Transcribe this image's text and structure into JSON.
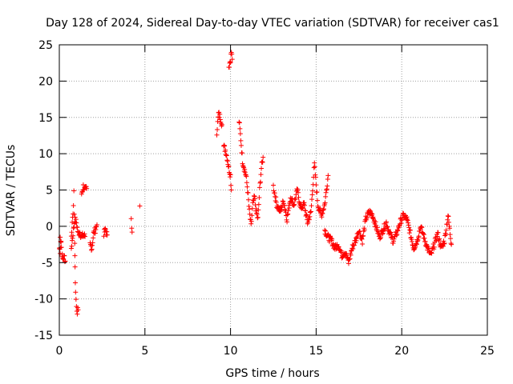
{
  "chart_data": {
    "type": "scatter",
    "title": "Day 128 of 2024, Sidereal Day-to-day VTEC variation (SDTVAR) for receiver cas1",
    "xlabel": "GPS time / hours",
    "ylabel": "SDTVAR / TECUs",
    "xlim": [
      0,
      25
    ],
    "ylim": [
      -15,
      25
    ],
    "xticks": [
      0,
      5,
      10,
      15,
      20,
      25
    ],
    "yticks": [
      -15,
      -10,
      -5,
      0,
      5,
      10,
      15,
      20,
      25
    ],
    "grid": true,
    "marker": "+",
    "series": [
      {
        "name": "SDTVAR",
        "color": "#ff0000",
        "segments": [
          [
            [
              0.0,
              -3.0
            ],
            [
              0.05,
              -3.4
            ],
            [
              0.1,
              -2.0
            ],
            [
              0.15,
              -3.8
            ],
            [
              0.2,
              -4.5
            ],
            [
              0.3,
              -4.2
            ],
            [
              0.35,
              -4.8
            ]
          ],
          [
            [
              0.05,
              -1.5
            ],
            [
              0.1,
              -2.2
            ]
          ],
          [
            [
              0.7,
              -1.5
            ],
            [
              0.75,
              0.5
            ],
            [
              0.8,
              2.0
            ],
            [
              0.85,
              4.5
            ],
            [
              0.9,
              -2.0
            ],
            [
              0.92,
              -6.0
            ],
            [
              0.95,
              -9.0
            ],
            [
              1.0,
              -11.2
            ],
            [
              1.05,
              -11.8
            ],
            [
              1.1,
              -11.5
            ]
          ],
          [
            [
              0.7,
              -3.0
            ],
            [
              0.8,
              -1.0
            ],
            [
              0.9,
              1.0
            ],
            [
              1.0,
              0.5
            ],
            [
              1.1,
              -1.0
            ],
            [
              1.2,
              -0.8
            ],
            [
              1.3,
              -1.5
            ],
            [
              1.4,
              -1.2
            ],
            [
              1.5,
              -1.4
            ]
          ],
          [
            [
              1.3,
              4.5
            ],
            [
              1.4,
              5.5
            ],
            [
              1.5,
              5.0
            ],
            [
              1.6,
              5.2
            ]
          ],
          [
            [
              1.8,
              -2.5
            ],
            [
              1.9,
              -3.0
            ],
            [
              2.0,
              -1.0
            ],
            [
              2.1,
              -0.5
            ],
            [
              2.2,
              0.2
            ]
          ],
          [
            [
              2.6,
              -1.0
            ],
            [
              2.7,
              -0.5
            ],
            [
              2.8,
              -1.2
            ]
          ],
          [
            [
              4.2,
              0.7
            ],
            [
              4.25,
              -0.8
            ]
          ],
          [
            [
              4.7,
              2.8
            ]
          ],
          [
            [
              9.2,
              13.0
            ],
            [
              9.3,
              15.5
            ],
            [
              9.4,
              15.0
            ],
            [
              9.5,
              14.0
            ]
          ],
          [
            [
              9.6,
              11.0
            ],
            [
              9.7,
              10.5
            ],
            [
              9.8,
              9.5
            ],
            [
              9.9,
              8.0
            ],
            [
              10.0,
              7.0
            ],
            [
              10.05,
              5.0
            ]
          ],
          [
            [
              9.9,
              22.0
            ],
            [
              10.0,
              23.0
            ],
            [
              10.05,
              24.0
            ],
            [
              10.1,
              23.0
            ]
          ],
          [
            [
              10.5,
              14.5
            ],
            [
              10.6,
              12.0
            ],
            [
              10.7,
              9.0
            ],
            [
              10.8,
              8.0
            ],
            [
              10.9,
              7.0
            ],
            [
              11.0,
              5.0
            ],
            [
              11.1,
              2.0
            ],
            [
              11.2,
              0.0
            ],
            [
              11.3,
              3.0
            ],
            [
              11.4,
              4.0
            ],
            [
              11.5,
              2.0
            ],
            [
              11.6,
              1.0
            ],
            [
              11.7,
              5.0
            ],
            [
              11.8,
              8.0
            ],
            [
              11.9,
              9.5
            ]
          ],
          [
            [
              12.5,
              5.5
            ],
            [
              12.7,
              3.0
            ],
            [
              12.9,
              2.0
            ],
            [
              13.1,
              3.5
            ],
            [
              13.3,
              1.0
            ],
            [
              13.5,
              4.0
            ],
            [
              13.7,
              3.0
            ],
            [
              13.9,
              5.0
            ],
            [
              14.1,
              2.5
            ],
            [
              14.3,
              3.0
            ],
            [
              14.5,
              0.5
            ],
            [
              14.7,
              2.0
            ],
            [
              14.9,
              8.5
            ],
            [
              15.1,
              3.0
            ],
            [
              15.3,
              1.5
            ],
            [
              15.5,
              3.0
            ],
            [
              15.7,
              7.0
            ]
          ],
          [
            [
              15.5,
              -0.5
            ],
            [
              15.7,
              -1.5
            ],
            [
              15.9,
              -2.0
            ],
            [
              16.1,
              -3.0
            ],
            [
              16.3,
              -2.5
            ],
            [
              16.5,
              -4.0
            ],
            [
              16.7,
              -3.5
            ],
            [
              16.9,
              -5.0
            ],
            [
              17.1,
              -3.0
            ],
            [
              17.3,
              -2.0
            ],
            [
              17.5,
              -0.5
            ],
            [
              17.7,
              -2.0
            ],
            [
              17.9,
              1.0
            ],
            [
              18.1,
              2.0
            ],
            [
              18.3,
              1.5
            ],
            [
              18.5,
              0.0
            ],
            [
              18.7,
              -1.5
            ],
            [
              18.9,
              -0.5
            ],
            [
              19.1,
              0.5
            ],
            [
              19.3,
              -1.0
            ],
            [
              19.5,
              -2.0
            ],
            [
              19.7,
              -1.0
            ],
            [
              19.9,
              0.5
            ],
            [
              20.1,
              1.5
            ],
            [
              20.3,
              1.0
            ],
            [
              20.5,
              -1.0
            ],
            [
              20.7,
              -3.0
            ],
            [
              20.9,
              -2.0
            ],
            [
              21.1,
              0.0
            ],
            [
              21.3,
              -1.5
            ],
            [
              21.5,
              -3.0
            ],
            [
              21.7,
              -4.0
            ],
            [
              21.9,
              -2.5
            ],
            [
              22.1,
              -1.0
            ],
            [
              22.3,
              -3.0
            ],
            [
              22.5,
              -2.0
            ],
            [
              22.7,
              1.5
            ],
            [
              22.8,
              -0.5
            ],
            [
              22.9,
              -2.5
            ]
          ]
        ]
      }
    ]
  }
}
